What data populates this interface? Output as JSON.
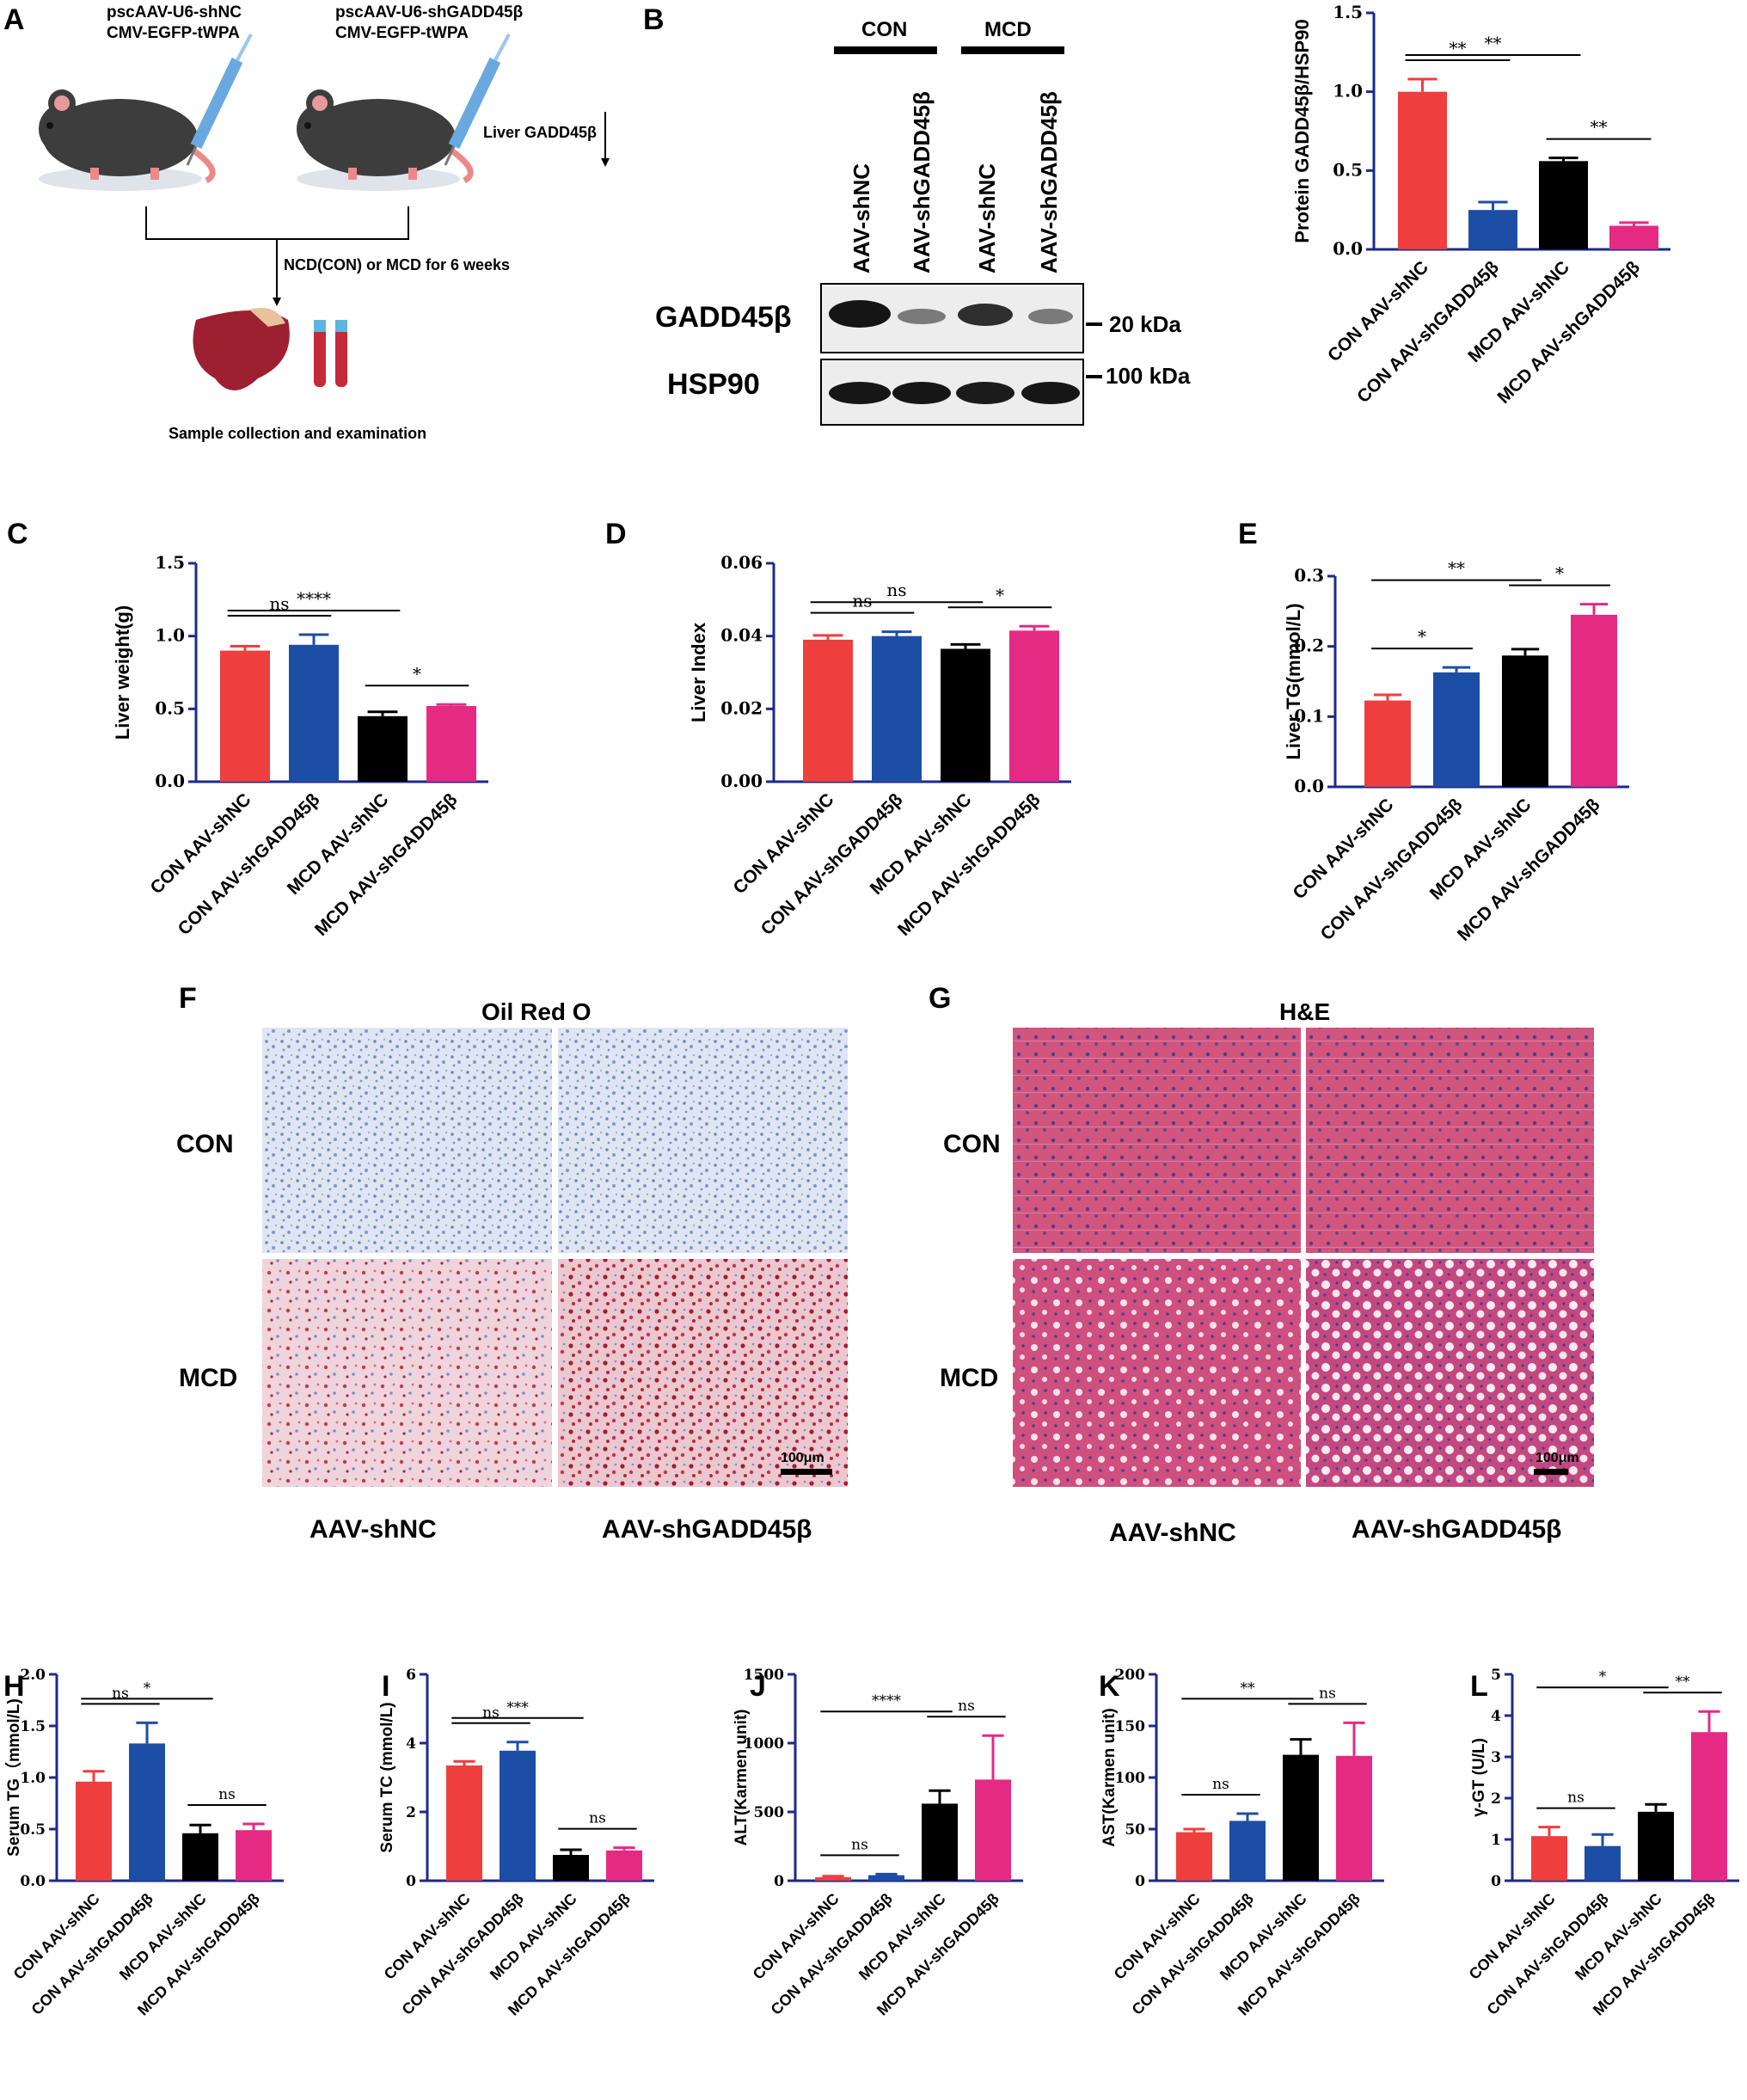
{
  "colors": {
    "con_shnc": "#ee3e3e",
    "con_shgadd": "#1c4ea6",
    "mcd_shnc": "#000000",
    "mcd_shgadd": "#e52a83",
    "axis": "#1c2a8c"
  },
  "panel_a": {
    "letter": "A",
    "label_left_1": "pscAAV-U6-shNC",
    "label_left_2": "CMV-EGFP-tWPA",
    "label_right_1": "pscAAV-U6-shGADD45β",
    "label_right_2": "CMV-EGFP-tWPA",
    "liver_note": "Liver GADD45β",
    "diet_note": "NCD(CON) or MCD for 6 weeks",
    "sample_note": "Sample collection and examination"
  },
  "panel_b_blot": {
    "letter": "B",
    "groups": [
      "CON",
      "MCD"
    ],
    "lanes": [
      "AAV-shNC",
      "AAV-shGADD45β",
      "AAV-shNC",
      "AAV-shGADD45β"
    ],
    "rows": [
      {
        "protein": "GADD45β",
        "marker": "20 kDa"
      },
      {
        "protein": "HSP90",
        "marker": "100 kDa"
      }
    ]
  },
  "histology_f": {
    "letter": "F",
    "title": "Oil Red O",
    "rows": [
      "CON",
      "MCD"
    ],
    "cols": [
      "AAV-shNC",
      "AAV-shGADD45β"
    ],
    "scale": "100μm"
  },
  "histology_g": {
    "letter": "G",
    "title": "H&E",
    "rows": [
      "CON",
      "MCD"
    ],
    "cols": [
      "AAV-shNC",
      "AAV-shGADD45β"
    ],
    "scale": "100μm"
  },
  "chart_data": [
    {
      "id": "B",
      "letter": "",
      "type": "bar",
      "categories": [
        "CON  AAV-shNC",
        "CON  AAV-shGADD45β",
        "MCD  AAV-shNC",
        "MCD  AAV-shGADD45β"
      ],
      "values": [
        1.0,
        0.25,
        0.56,
        0.15
      ],
      "errors": [
        0.08,
        0.05,
        0.02,
        0.02
      ],
      "ylabel": "Protein GADD45β/HSP90",
      "ylim": [
        0,
        1.5
      ],
      "yticks": [
        0.0,
        0.5,
        1.0,
        1.5
      ],
      "ytick_labels": [
        "0.0",
        "0.5",
        "1.0",
        "1.5"
      ],
      "sig": [
        {
          "from": 0,
          "to": 1,
          "label": "**"
        },
        {
          "from": 0,
          "to": 2,
          "label": "**"
        },
        {
          "from": 2,
          "to": 3,
          "label": "**"
        }
      ]
    },
    {
      "id": "C",
      "letter": "C",
      "type": "bar",
      "categories": [
        "CON AAV-shNC",
        "CON AAV-shGADD45β",
        "MCD AAV-shNC",
        "MCD AAV-shGADD45β"
      ],
      "values": [
        0.9,
        0.94,
        0.45,
        0.52
      ],
      "errors": [
        0.03,
        0.07,
        0.03,
        0.01
      ],
      "ylabel": "Liver weight(g)",
      "ylim": [
        0,
        1.5
      ],
      "yticks": [
        0.0,
        0.5,
        1.0,
        1.5
      ],
      "ytick_labels": [
        "0.0",
        "0.5",
        "1.0",
        "1.5"
      ],
      "sig": [
        {
          "from": 0,
          "to": 2,
          "label": "****"
        },
        {
          "from": 0,
          "to": 1,
          "label": "ns"
        },
        {
          "from": 2,
          "to": 3,
          "label": "*"
        }
      ]
    },
    {
      "id": "D",
      "letter": "D",
      "type": "bar",
      "categories": [
        "CON AAV-shNC",
        "CON AAV-shGADD45β",
        "MCD AAV-shNC",
        "MCD AAV-shGADD45β"
      ],
      "values": [
        0.039,
        0.04,
        0.0365,
        0.0415
      ],
      "errors": [
        0.0012,
        0.0012,
        0.0012,
        0.0012
      ],
      "ylabel": "Liver Index",
      "ylim": [
        0,
        0.06
      ],
      "yticks": [
        0.0,
        0.02,
        0.04,
        0.06
      ],
      "ytick_labels": [
        "0.00",
        "0.02",
        "0.04",
        "0.06"
      ],
      "sig": [
        {
          "from": 0,
          "to": 2,
          "label": "ns"
        },
        {
          "from": 0,
          "to": 1,
          "label": "ns"
        },
        {
          "from": 2,
          "to": 3,
          "label": "*"
        }
      ]
    },
    {
      "id": "E",
      "letter": "E",
      "type": "bar",
      "categories": [
        "CON AAV-shNC",
        "CON AAV-shGADD45β",
        "MCD AAV-shNC",
        "MCD AAV-shGADD45β"
      ],
      "values": [
        0.123,
        0.163,
        0.187,
        0.245
      ],
      "errors": [
        0.008,
        0.007,
        0.009,
        0.015
      ],
      "ylabel": "Liver TG(mmol/L)",
      "ylim": [
        0,
        0.3
      ],
      "yticks": [
        0.0,
        0.1,
        0.2,
        0.3
      ],
      "ytick_labels": [
        "0.0",
        "0.1",
        "0.2",
        "0.3"
      ],
      "sig": [
        {
          "from": 0,
          "to": 2,
          "label": "**"
        },
        {
          "from": 0,
          "to": 1,
          "label": "*"
        },
        {
          "from": 2,
          "to": 3,
          "label": "*"
        }
      ]
    },
    {
      "id": "H",
      "letter": "H",
      "type": "bar",
      "categories": [
        "CON AAV-shNC",
        "CON AAV-shGADD45β",
        "MCD AAV-shNC",
        "MCD AAV-shGADD45β"
      ],
      "values": [
        0.96,
        1.33,
        0.46,
        0.49
      ],
      "errors": [
        0.1,
        0.2,
        0.08,
        0.06
      ],
      "ylabel": "Serum TG（mmol/L)",
      "ylim": [
        0,
        2.0
      ],
      "yticks": [
        0.0,
        0.5,
        1.0,
        1.5,
        2.0
      ],
      "ytick_labels": [
        "0.0",
        "0.5",
        "1.0",
        "1.5",
        "2.0"
      ],
      "sig": [
        {
          "from": 0,
          "to": 2,
          "label": "*"
        },
        {
          "from": 0,
          "to": 1,
          "label": "ns"
        },
        {
          "from": 2,
          "to": 3,
          "label": "ns"
        }
      ]
    },
    {
      "id": "I",
      "letter": "I",
      "type": "bar",
      "categories": [
        "CON AAV-shNC",
        "CON AAV-shGADD45β",
        "MCD AAV-shNC",
        "MCD AAV-shGADD45β"
      ],
      "values": [
        3.35,
        3.78,
        0.75,
        0.88
      ],
      "errors": [
        0.12,
        0.25,
        0.15,
        0.08
      ],
      "ylabel": "Serum TC (mmol/L)",
      "ylim": [
        0,
        6
      ],
      "yticks": [
        0,
        2,
        4,
        6
      ],
      "ytick_labels": [
        "0",
        "2",
        "4",
        "6"
      ],
      "sig": [
        {
          "from": 0,
          "to": 2,
          "label": "***"
        },
        {
          "from": 0,
          "to": 1,
          "label": "ns"
        },
        {
          "from": 2,
          "to": 3,
          "label": "ns"
        }
      ]
    },
    {
      "id": "J",
      "letter": "J",
      "type": "bar",
      "categories": [
        "CON AAV-shNC",
        "CON AAV-shGADD45β",
        "MCD AAV-shNC",
        "MCD AAV-shGADD45β"
      ],
      "values": [
        25,
        40,
        560,
        735
      ],
      "errors": [
        8,
        8,
        95,
        320
      ],
      "ylabel": "ALT(Karmen unit)",
      "ylim": [
        0,
        1500
      ],
      "yticks": [
        0,
        500,
        1000,
        1500
      ],
      "ytick_labels": [
        "0",
        "500",
        "1000",
        "1500"
      ],
      "sig": [
        {
          "from": 0,
          "to": 2,
          "label": "****"
        },
        {
          "from": 0,
          "to": 1,
          "label": "ns"
        },
        {
          "from": 2,
          "to": 3,
          "label": "ns"
        }
      ]
    },
    {
      "id": "K",
      "letter": "K",
      "type": "bar",
      "categories": [
        "CON AAV-shNC",
        "CON AAV-shGADD45β",
        "MCD AAV-shNC",
        "MCD AAV-shGADD45β"
      ],
      "values": [
        47,
        58,
        122,
        121
      ],
      "errors": [
        3,
        7,
        15,
        32
      ],
      "ylabel": "AST(Karmen unit)",
      "ylim": [
        0,
        200
      ],
      "yticks": [
        0,
        50,
        100,
        150,
        200
      ],
      "ytick_labels": [
        "0",
        "50",
        "100",
        "150",
        "200"
      ],
      "sig": [
        {
          "from": 0,
          "to": 2,
          "label": "**"
        },
        {
          "from": 0,
          "to": 1,
          "label": "ns"
        },
        {
          "from": 2,
          "to": 3,
          "label": "ns"
        }
      ]
    },
    {
      "id": "L",
      "letter": "L",
      "type": "bar",
      "categories": [
        "CON AAV-shNC",
        "CON AAV-shGADD45β",
        "MCD AAV-shNC",
        "MCD AAV-shGADD45β"
      ],
      "values": [
        1.08,
        0.84,
        1.67,
        3.6
      ],
      "errors": [
        0.22,
        0.28,
        0.18,
        0.5
      ],
      "ylabel": "γ-GT (U/L)",
      "ylim": [
        0,
        5
      ],
      "yticks": [
        0,
        1,
        2,
        3,
        4,
        5
      ],
      "ytick_labels": [
        "0",
        "1",
        "2",
        "3",
        "4",
        "5"
      ],
      "sig": [
        {
          "from": 0,
          "to": 2,
          "label": "*"
        },
        {
          "from": 0,
          "to": 1,
          "label": "ns"
        },
        {
          "from": 2,
          "to": 3,
          "label": "**"
        }
      ]
    }
  ]
}
